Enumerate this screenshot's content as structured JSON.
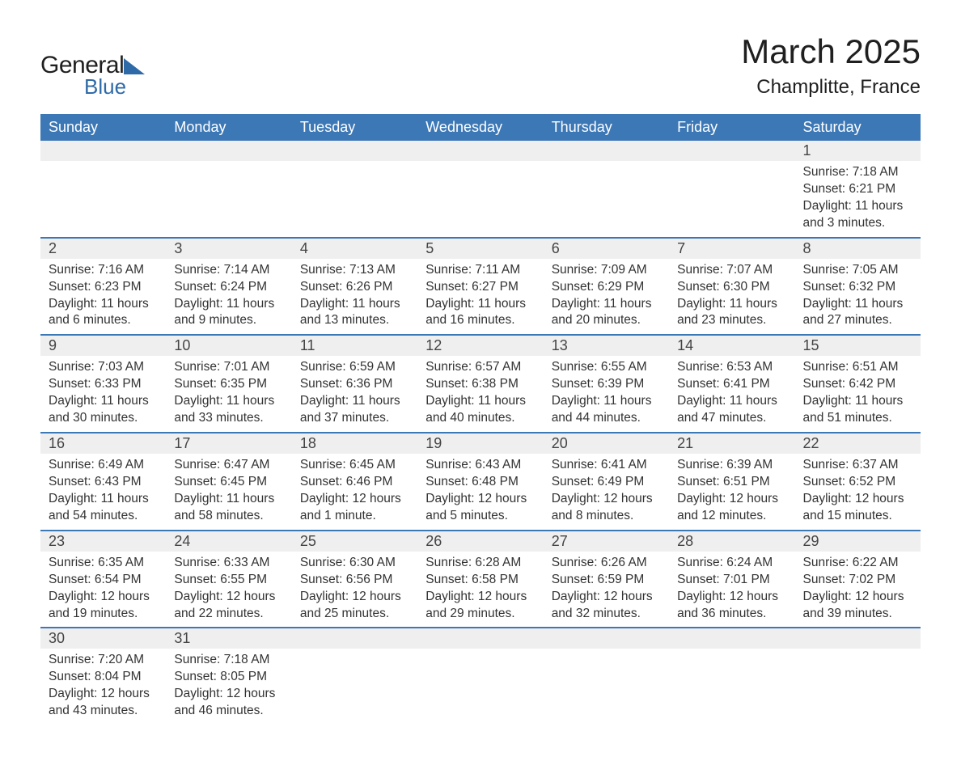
{
  "logo": {
    "word1": "General",
    "word2": "Blue"
  },
  "header": {
    "month_title": "March 2025",
    "location": "Champlitte, France"
  },
  "colors": {
    "header_bg": "#3d78b6",
    "header_text": "#ffffff",
    "row_divider": "#3d78b6",
    "daynum_bg": "#efefef",
    "body_text": "#333333",
    "logo_accent": "#2f6aa8",
    "page_bg": "#ffffff"
  },
  "typography": {
    "month_title_fontsize": 42,
    "location_fontsize": 24,
    "weekday_fontsize": 18,
    "daynum_fontsize": 18,
    "body_fontsize": 15.5,
    "font_family": "Arial"
  },
  "calendar": {
    "type": "table",
    "weekdays": [
      "Sunday",
      "Monday",
      "Tuesday",
      "Wednesday",
      "Thursday",
      "Friday",
      "Saturday"
    ],
    "weeks": [
      [
        null,
        null,
        null,
        null,
        null,
        null,
        {
          "n": "1",
          "sunrise": "Sunrise: 7:18 AM",
          "sunset": "Sunset: 6:21 PM",
          "d1": "Daylight: 11 hours",
          "d2": "and 3 minutes."
        }
      ],
      [
        {
          "n": "2",
          "sunrise": "Sunrise: 7:16 AM",
          "sunset": "Sunset: 6:23 PM",
          "d1": "Daylight: 11 hours",
          "d2": "and 6 minutes."
        },
        {
          "n": "3",
          "sunrise": "Sunrise: 7:14 AM",
          "sunset": "Sunset: 6:24 PM",
          "d1": "Daylight: 11 hours",
          "d2": "and 9 minutes."
        },
        {
          "n": "4",
          "sunrise": "Sunrise: 7:13 AM",
          "sunset": "Sunset: 6:26 PM",
          "d1": "Daylight: 11 hours",
          "d2": "and 13 minutes."
        },
        {
          "n": "5",
          "sunrise": "Sunrise: 7:11 AM",
          "sunset": "Sunset: 6:27 PM",
          "d1": "Daylight: 11 hours",
          "d2": "and 16 minutes."
        },
        {
          "n": "6",
          "sunrise": "Sunrise: 7:09 AM",
          "sunset": "Sunset: 6:29 PM",
          "d1": "Daylight: 11 hours",
          "d2": "and 20 minutes."
        },
        {
          "n": "7",
          "sunrise": "Sunrise: 7:07 AM",
          "sunset": "Sunset: 6:30 PM",
          "d1": "Daylight: 11 hours",
          "d2": "and 23 minutes."
        },
        {
          "n": "8",
          "sunrise": "Sunrise: 7:05 AM",
          "sunset": "Sunset: 6:32 PM",
          "d1": "Daylight: 11 hours",
          "d2": "and 27 minutes."
        }
      ],
      [
        {
          "n": "9",
          "sunrise": "Sunrise: 7:03 AM",
          "sunset": "Sunset: 6:33 PM",
          "d1": "Daylight: 11 hours",
          "d2": "and 30 minutes."
        },
        {
          "n": "10",
          "sunrise": "Sunrise: 7:01 AM",
          "sunset": "Sunset: 6:35 PM",
          "d1": "Daylight: 11 hours",
          "d2": "and 33 minutes."
        },
        {
          "n": "11",
          "sunrise": "Sunrise: 6:59 AM",
          "sunset": "Sunset: 6:36 PM",
          "d1": "Daylight: 11 hours",
          "d2": "and 37 minutes."
        },
        {
          "n": "12",
          "sunrise": "Sunrise: 6:57 AM",
          "sunset": "Sunset: 6:38 PM",
          "d1": "Daylight: 11 hours",
          "d2": "and 40 minutes."
        },
        {
          "n": "13",
          "sunrise": "Sunrise: 6:55 AM",
          "sunset": "Sunset: 6:39 PM",
          "d1": "Daylight: 11 hours",
          "d2": "and 44 minutes."
        },
        {
          "n": "14",
          "sunrise": "Sunrise: 6:53 AM",
          "sunset": "Sunset: 6:41 PM",
          "d1": "Daylight: 11 hours",
          "d2": "and 47 minutes."
        },
        {
          "n": "15",
          "sunrise": "Sunrise: 6:51 AM",
          "sunset": "Sunset: 6:42 PM",
          "d1": "Daylight: 11 hours",
          "d2": "and 51 minutes."
        }
      ],
      [
        {
          "n": "16",
          "sunrise": "Sunrise: 6:49 AM",
          "sunset": "Sunset: 6:43 PM",
          "d1": "Daylight: 11 hours",
          "d2": "and 54 minutes."
        },
        {
          "n": "17",
          "sunrise": "Sunrise: 6:47 AM",
          "sunset": "Sunset: 6:45 PM",
          "d1": "Daylight: 11 hours",
          "d2": "and 58 minutes."
        },
        {
          "n": "18",
          "sunrise": "Sunrise: 6:45 AM",
          "sunset": "Sunset: 6:46 PM",
          "d1": "Daylight: 12 hours",
          "d2": "and 1 minute."
        },
        {
          "n": "19",
          "sunrise": "Sunrise: 6:43 AM",
          "sunset": "Sunset: 6:48 PM",
          "d1": "Daylight: 12 hours",
          "d2": "and 5 minutes."
        },
        {
          "n": "20",
          "sunrise": "Sunrise: 6:41 AM",
          "sunset": "Sunset: 6:49 PM",
          "d1": "Daylight: 12 hours",
          "d2": "and 8 minutes."
        },
        {
          "n": "21",
          "sunrise": "Sunrise: 6:39 AM",
          "sunset": "Sunset: 6:51 PM",
          "d1": "Daylight: 12 hours",
          "d2": "and 12 minutes."
        },
        {
          "n": "22",
          "sunrise": "Sunrise: 6:37 AM",
          "sunset": "Sunset: 6:52 PM",
          "d1": "Daylight: 12 hours",
          "d2": "and 15 minutes."
        }
      ],
      [
        {
          "n": "23",
          "sunrise": "Sunrise: 6:35 AM",
          "sunset": "Sunset: 6:54 PM",
          "d1": "Daylight: 12 hours",
          "d2": "and 19 minutes."
        },
        {
          "n": "24",
          "sunrise": "Sunrise: 6:33 AM",
          "sunset": "Sunset: 6:55 PM",
          "d1": "Daylight: 12 hours",
          "d2": "and 22 minutes."
        },
        {
          "n": "25",
          "sunrise": "Sunrise: 6:30 AM",
          "sunset": "Sunset: 6:56 PM",
          "d1": "Daylight: 12 hours",
          "d2": "and 25 minutes."
        },
        {
          "n": "26",
          "sunrise": "Sunrise: 6:28 AM",
          "sunset": "Sunset: 6:58 PM",
          "d1": "Daylight: 12 hours",
          "d2": "and 29 minutes."
        },
        {
          "n": "27",
          "sunrise": "Sunrise: 6:26 AM",
          "sunset": "Sunset: 6:59 PM",
          "d1": "Daylight: 12 hours",
          "d2": "and 32 minutes."
        },
        {
          "n": "28",
          "sunrise": "Sunrise: 6:24 AM",
          "sunset": "Sunset: 7:01 PM",
          "d1": "Daylight: 12 hours",
          "d2": "and 36 minutes."
        },
        {
          "n": "29",
          "sunrise": "Sunrise: 6:22 AM",
          "sunset": "Sunset: 7:02 PM",
          "d1": "Daylight: 12 hours",
          "d2": "and 39 minutes."
        }
      ],
      [
        {
          "n": "30",
          "sunrise": "Sunrise: 7:20 AM",
          "sunset": "Sunset: 8:04 PM",
          "d1": "Daylight: 12 hours",
          "d2": "and 43 minutes."
        },
        {
          "n": "31",
          "sunrise": "Sunrise: 7:18 AM",
          "sunset": "Sunset: 8:05 PM",
          "d1": "Daylight: 12 hours",
          "d2": "and 46 minutes."
        },
        null,
        null,
        null,
        null,
        null
      ]
    ]
  }
}
